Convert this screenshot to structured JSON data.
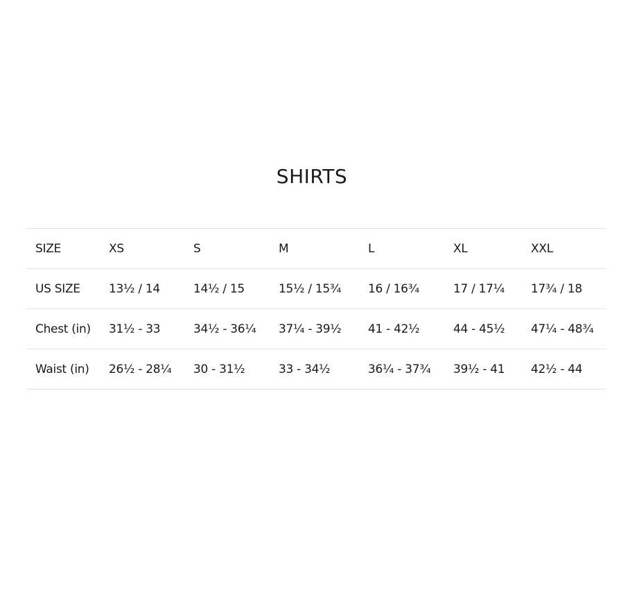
{
  "title": "SHIRTS",
  "rows": [
    [
      "SIZE",
      "XS",
      "S",
      "M",
      "L",
      "XL",
      "XXL"
    ],
    [
      "US SIZE",
      "13½ / 14",
      "14½ / 15",
      "15½ / 15¾",
      "16 / 16¾",
      "17 / 17¼",
      "17¾ / 18"
    ],
    [
      "Chest (in)",
      "31½ - 33",
      "34½ - 36¼",
      "37¼ - 39½",
      "41 - 42½",
      "44 - 45½",
      "47¼ - 48¾"
    ],
    [
      "Waist (in)",
      "26½ - 28¼",
      "30 - 31½",
      "33 - 34½",
      "36¼ - 37¾",
      "39½ - 41",
      "42½ - 44"
    ]
  ]
}
